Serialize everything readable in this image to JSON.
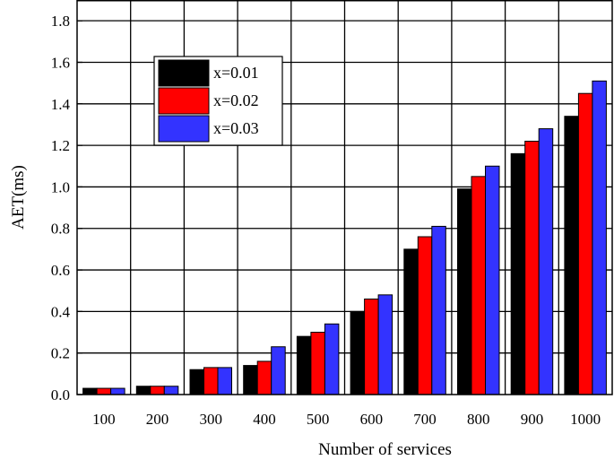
{
  "chart_data": {
    "type": "bar",
    "title": "",
    "xlabel": "Number of services",
    "ylabel": "AET(ms)",
    "categories": [
      "100",
      "200",
      "300",
      "400",
      "500",
      "600",
      "700",
      "800",
      "900",
      "1000"
    ],
    "series": [
      {
        "name": "x=0.01",
        "color": "#000000",
        "values": [
          0.03,
          0.04,
          0.12,
          0.14,
          0.28,
          0.4,
          0.7,
          0.99,
          1.16,
          1.34
        ]
      },
      {
        "name": "x=0.02",
        "color": "#ff0000",
        "values": [
          0.03,
          0.04,
          0.13,
          0.16,
          0.3,
          0.46,
          0.76,
          1.05,
          1.22,
          1.45
        ]
      },
      {
        "name": "x=0.03",
        "color": "#3333ff",
        "values": [
          0.03,
          0.04,
          0.13,
          0.23,
          0.34,
          0.48,
          0.81,
          1.1,
          1.28,
          1.51
        ]
      }
    ],
    "ylim": [
      0,
      1.9
    ],
    "yticks": [
      "0.0",
      "0.2",
      "0.4",
      "0.6",
      "0.8",
      "1.0",
      "1.2",
      "1.4",
      "1.6",
      "1.8"
    ],
    "grid": true,
    "legend_position": "upper-left"
  }
}
